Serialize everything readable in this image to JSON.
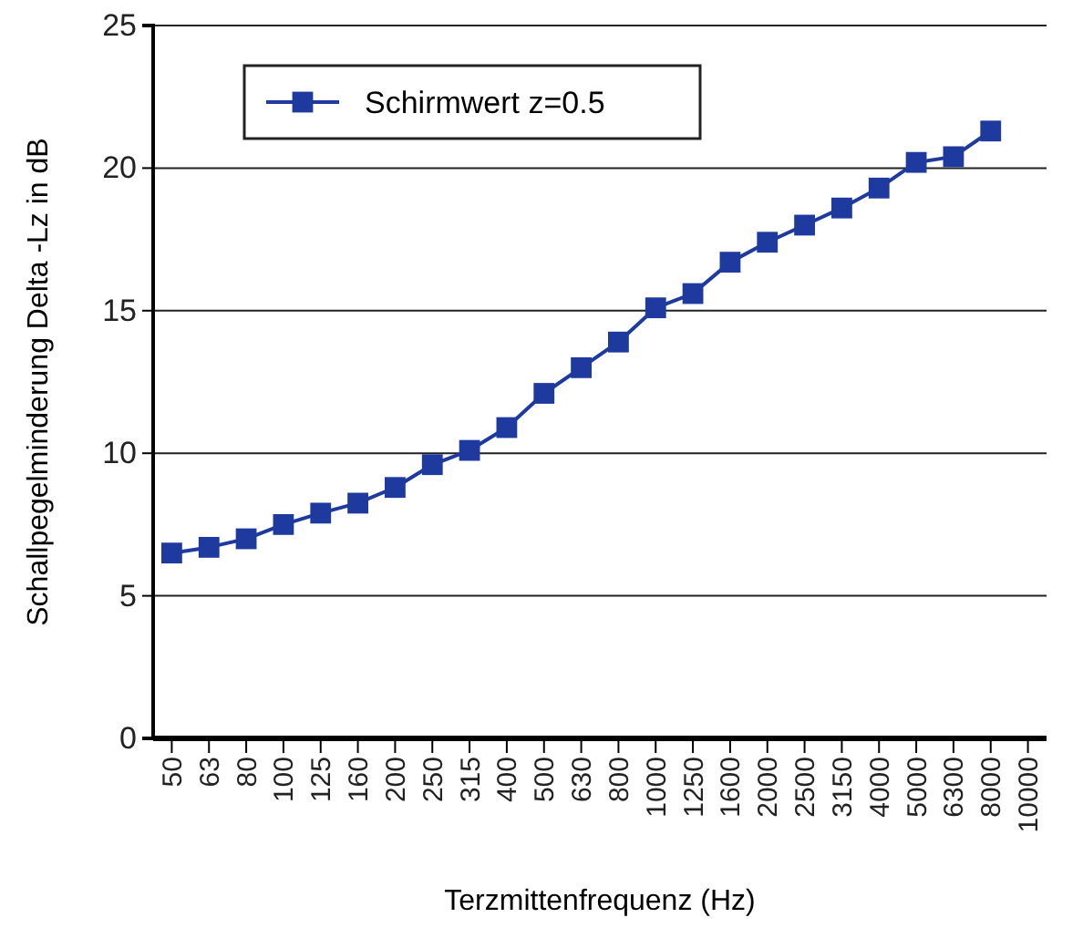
{
  "chart_data": {
    "type": "line",
    "xlabel": "Terzmittenfrequenz (Hz)",
    "ylabel": "Schallpegelminderung  Delta -Lz in dB",
    "categories": [
      "50",
      "63",
      "80",
      "100",
      "125",
      "160",
      "200",
      "250",
      "315",
      "400",
      "500",
      "630",
      "800",
      "1000",
      "1250",
      "1600",
      "2000",
      "2500",
      "3150",
      "4000",
      "5000",
      "6300",
      "8000",
      "10000"
    ],
    "series": [
      {
        "name": "Schirmwert z=0.5",
        "color": "#1f3a9e",
        "values": [
          6.5,
          6.7,
          7.0,
          7.5,
          7.9,
          8.25,
          8.8,
          9.6,
          10.1,
          10.9,
          12.1,
          13.0,
          13.9,
          15.1,
          15.6,
          16.7,
          17.4,
          18.0,
          18.6,
          19.3,
          20.2,
          20.4,
          21.3,
          null
        ]
      }
    ],
    "ylim": [
      0,
      25
    ],
    "yticks": [
      0,
      5,
      10,
      15,
      20,
      25
    ],
    "grid": "y",
    "legend": "top left",
    "marker": "square",
    "line_style": "solid"
  }
}
